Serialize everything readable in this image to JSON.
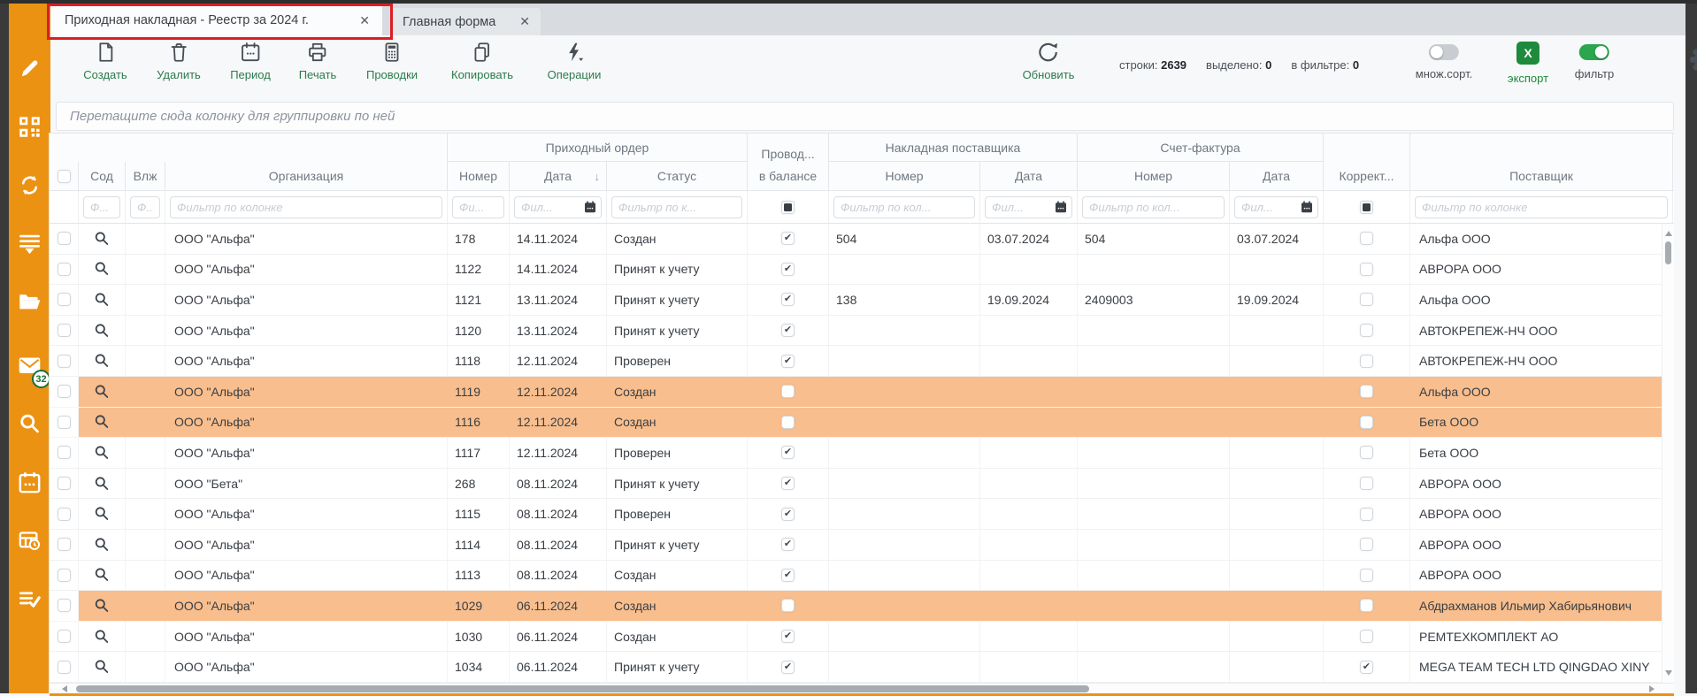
{
  "tabs": {
    "items": [
      {
        "label": "Приходная накладная - Реестр за 2024 г."
      },
      {
        "label": "Главная форма"
      }
    ],
    "close_glyph": "✕"
  },
  "toolbar": {
    "buttons": [
      {
        "id": "create",
        "label": "Создать"
      },
      {
        "id": "delete",
        "label": "Удалить"
      },
      {
        "id": "period",
        "label": "Период"
      },
      {
        "id": "print",
        "label": "Печать"
      },
      {
        "id": "postings",
        "label": "Проводки"
      },
      {
        "id": "copy",
        "label": "Копировать"
      },
      {
        "id": "operations",
        "label": "Операции"
      }
    ],
    "refresh_label": "Обновить",
    "stats": [
      {
        "label": "строки:",
        "value": "2639"
      },
      {
        "label": "выделено:",
        "value": "0"
      },
      {
        "label": "в фильтре:",
        "value": "0"
      }
    ],
    "multisort_label": "множ.сорт.",
    "multisort_on": false,
    "export_label": "экспорт",
    "export_glyph": "X",
    "filter_label": "фильтр",
    "filter_on": true
  },
  "sidebar": {
    "mail_badge": "32"
  },
  "group_bar": {
    "hint": "Перетащите сюда колонку для группировки по ней"
  },
  "table": {
    "groups": [
      "Приходный ордер",
      "Накладная поставщика",
      "Счет-фактура"
    ],
    "columns": [
      {
        "id": "select",
        "label": ""
      },
      {
        "id": "sod",
        "label": "Сод"
      },
      {
        "id": "vlzh",
        "label": "Влж"
      },
      {
        "id": "org",
        "label": "Организация"
      },
      {
        "id": "po_num",
        "label": "Номер"
      },
      {
        "id": "po_date",
        "label": "Дата",
        "sort": "↓"
      },
      {
        "id": "po_status",
        "label": "Статус"
      },
      {
        "id": "balance",
        "label": "Провод...",
        "label2": "в балансе"
      },
      {
        "id": "np_num",
        "label": "Номер"
      },
      {
        "id": "np_date",
        "label": "Дата"
      },
      {
        "id": "sf_num",
        "label": "Номер"
      },
      {
        "id": "sf_date",
        "label": "Дата"
      },
      {
        "id": "korr",
        "label": "Коррект..."
      },
      {
        "id": "supplier",
        "label": "Поставщик"
      }
    ],
    "filters": {
      "sod": "Ф...",
      "vlzh": "Ф...",
      "org": "Фильтр по колонке",
      "po_num": "Фи...",
      "po_date": "Фил...",
      "po_status": "Фильтр по к...",
      "np_num": "Фильтр по кол...",
      "np_date": "Фил...",
      "sf_num": "Фильтр по кол...",
      "sf_date": "Фил...",
      "supplier": "Фильтр по колонке"
    },
    "check_glyph": "✔",
    "rows": [
      {
        "org": "ООО \"Альфа\"",
        "po_num": "178",
        "po_date": "14.11.2024",
        "po_status": "Создан",
        "balance": true,
        "np_num": "504",
        "np_date": "03.07.2024",
        "sf_num": "504",
        "sf_date": "03.07.2024",
        "korr": false,
        "supplier": "Альфа ООО",
        "highlight": false
      },
      {
        "org": "ООО \"Альфа\"",
        "po_num": "1122",
        "po_date": "14.11.2024",
        "po_status": "Принят к учету",
        "balance": true,
        "np_num": "",
        "np_date": "",
        "sf_num": "",
        "sf_date": "",
        "korr": false,
        "supplier": "АВРОРА ООО",
        "highlight": false
      },
      {
        "org": "ООО \"Альфа\"",
        "po_num": "1121",
        "po_date": "13.11.2024",
        "po_status": "Принят к учету",
        "balance": true,
        "np_num": "138",
        "np_date": "19.09.2024",
        "sf_num": "2409003",
        "sf_date": "19.09.2024",
        "korr": false,
        "supplier": "Альфа ООО",
        "highlight": false
      },
      {
        "org": "ООО \"Альфа\"",
        "po_num": "1120",
        "po_date": "13.11.2024",
        "po_status": "Принят к учету",
        "balance": true,
        "np_num": "",
        "np_date": "",
        "sf_num": "",
        "sf_date": "",
        "korr": false,
        "supplier": "АВТОКРЕПЕЖ-НЧ ООО",
        "highlight": false
      },
      {
        "org": "ООО \"Альфа\"",
        "po_num": "1118",
        "po_date": "12.11.2024",
        "po_status": "Проверен",
        "balance": true,
        "np_num": "",
        "np_date": "",
        "sf_num": "",
        "sf_date": "",
        "korr": false,
        "supplier": "АВТОКРЕПЕЖ-НЧ ООО",
        "highlight": false
      },
      {
        "org": "ООО \"Альфа\"",
        "po_num": "1119",
        "po_date": "12.11.2024",
        "po_status": "Создан",
        "balance": false,
        "np_num": "",
        "np_date": "",
        "sf_num": "",
        "sf_date": "",
        "korr": false,
        "supplier": "Альфа ООО",
        "highlight": true
      },
      {
        "org": "ООО \"Альфа\"",
        "po_num": "1116",
        "po_date": "12.11.2024",
        "po_status": "Создан",
        "balance": false,
        "np_num": "",
        "np_date": "",
        "sf_num": "",
        "sf_date": "",
        "korr": false,
        "supplier": "Бета ООО",
        "highlight": true
      },
      {
        "org": "ООО \"Альфа\"",
        "po_num": "1117",
        "po_date": "12.11.2024",
        "po_status": "Проверен",
        "balance": true,
        "np_num": "",
        "np_date": "",
        "sf_num": "",
        "sf_date": "",
        "korr": false,
        "supplier": "Бета ООО",
        "highlight": false
      },
      {
        "org": "ООО \"Бета\"",
        "po_num": "268",
        "po_date": "08.11.2024",
        "po_status": "Принят к учету",
        "balance": true,
        "np_num": "",
        "np_date": "",
        "sf_num": "",
        "sf_date": "",
        "korr": false,
        "supplier": "АВРОРА ООО",
        "highlight": false
      },
      {
        "org": "ООО \"Альфа\"",
        "po_num": "1115",
        "po_date": "08.11.2024",
        "po_status": "Проверен",
        "balance": true,
        "np_num": "",
        "np_date": "",
        "sf_num": "",
        "sf_date": "",
        "korr": false,
        "supplier": "АВРОРА ООО",
        "highlight": false
      },
      {
        "org": "ООО \"Альфа\"",
        "po_num": "1114",
        "po_date": "08.11.2024",
        "po_status": "Принят к учету",
        "balance": true,
        "np_num": "",
        "np_date": "",
        "sf_num": "",
        "sf_date": "",
        "korr": false,
        "supplier": "АВРОРА ООО",
        "highlight": false
      },
      {
        "org": "ООО \"Альфа\"",
        "po_num": "1113",
        "po_date": "08.11.2024",
        "po_status": "Создан",
        "balance": true,
        "np_num": "",
        "np_date": "",
        "sf_num": "",
        "sf_date": "",
        "korr": false,
        "supplier": "АВРОРА ООО",
        "highlight": false
      },
      {
        "org": "ООО \"Альфа\"",
        "po_num": "1029",
        "po_date": "06.11.2024",
        "po_status": "Создан",
        "balance": false,
        "np_num": "",
        "np_date": "",
        "sf_num": "",
        "sf_date": "",
        "korr": false,
        "supplier": "Абдрахманов Ильмир Хабирьянович",
        "highlight": true
      },
      {
        "org": "ООО \"Альфа\"",
        "po_num": "1030",
        "po_date": "06.11.2024",
        "po_status": "Создан",
        "balance": true,
        "np_num": "",
        "np_date": "",
        "sf_num": "",
        "sf_date": "",
        "korr": false,
        "supplier": "РЕМТЕХКОМПЛЕКТ АО",
        "highlight": false
      },
      {
        "org": "ООО \"Альфа\"",
        "po_num": "1034",
        "po_date": "06.11.2024",
        "po_status": "Принят к учету",
        "balance": true,
        "np_num": "",
        "np_date": "",
        "sf_num": "",
        "sf_date": "",
        "korr": true,
        "supplier": "MEGA TEAM TECH LTD QINGDAO XINY",
        "highlight": false
      }
    ]
  }
}
